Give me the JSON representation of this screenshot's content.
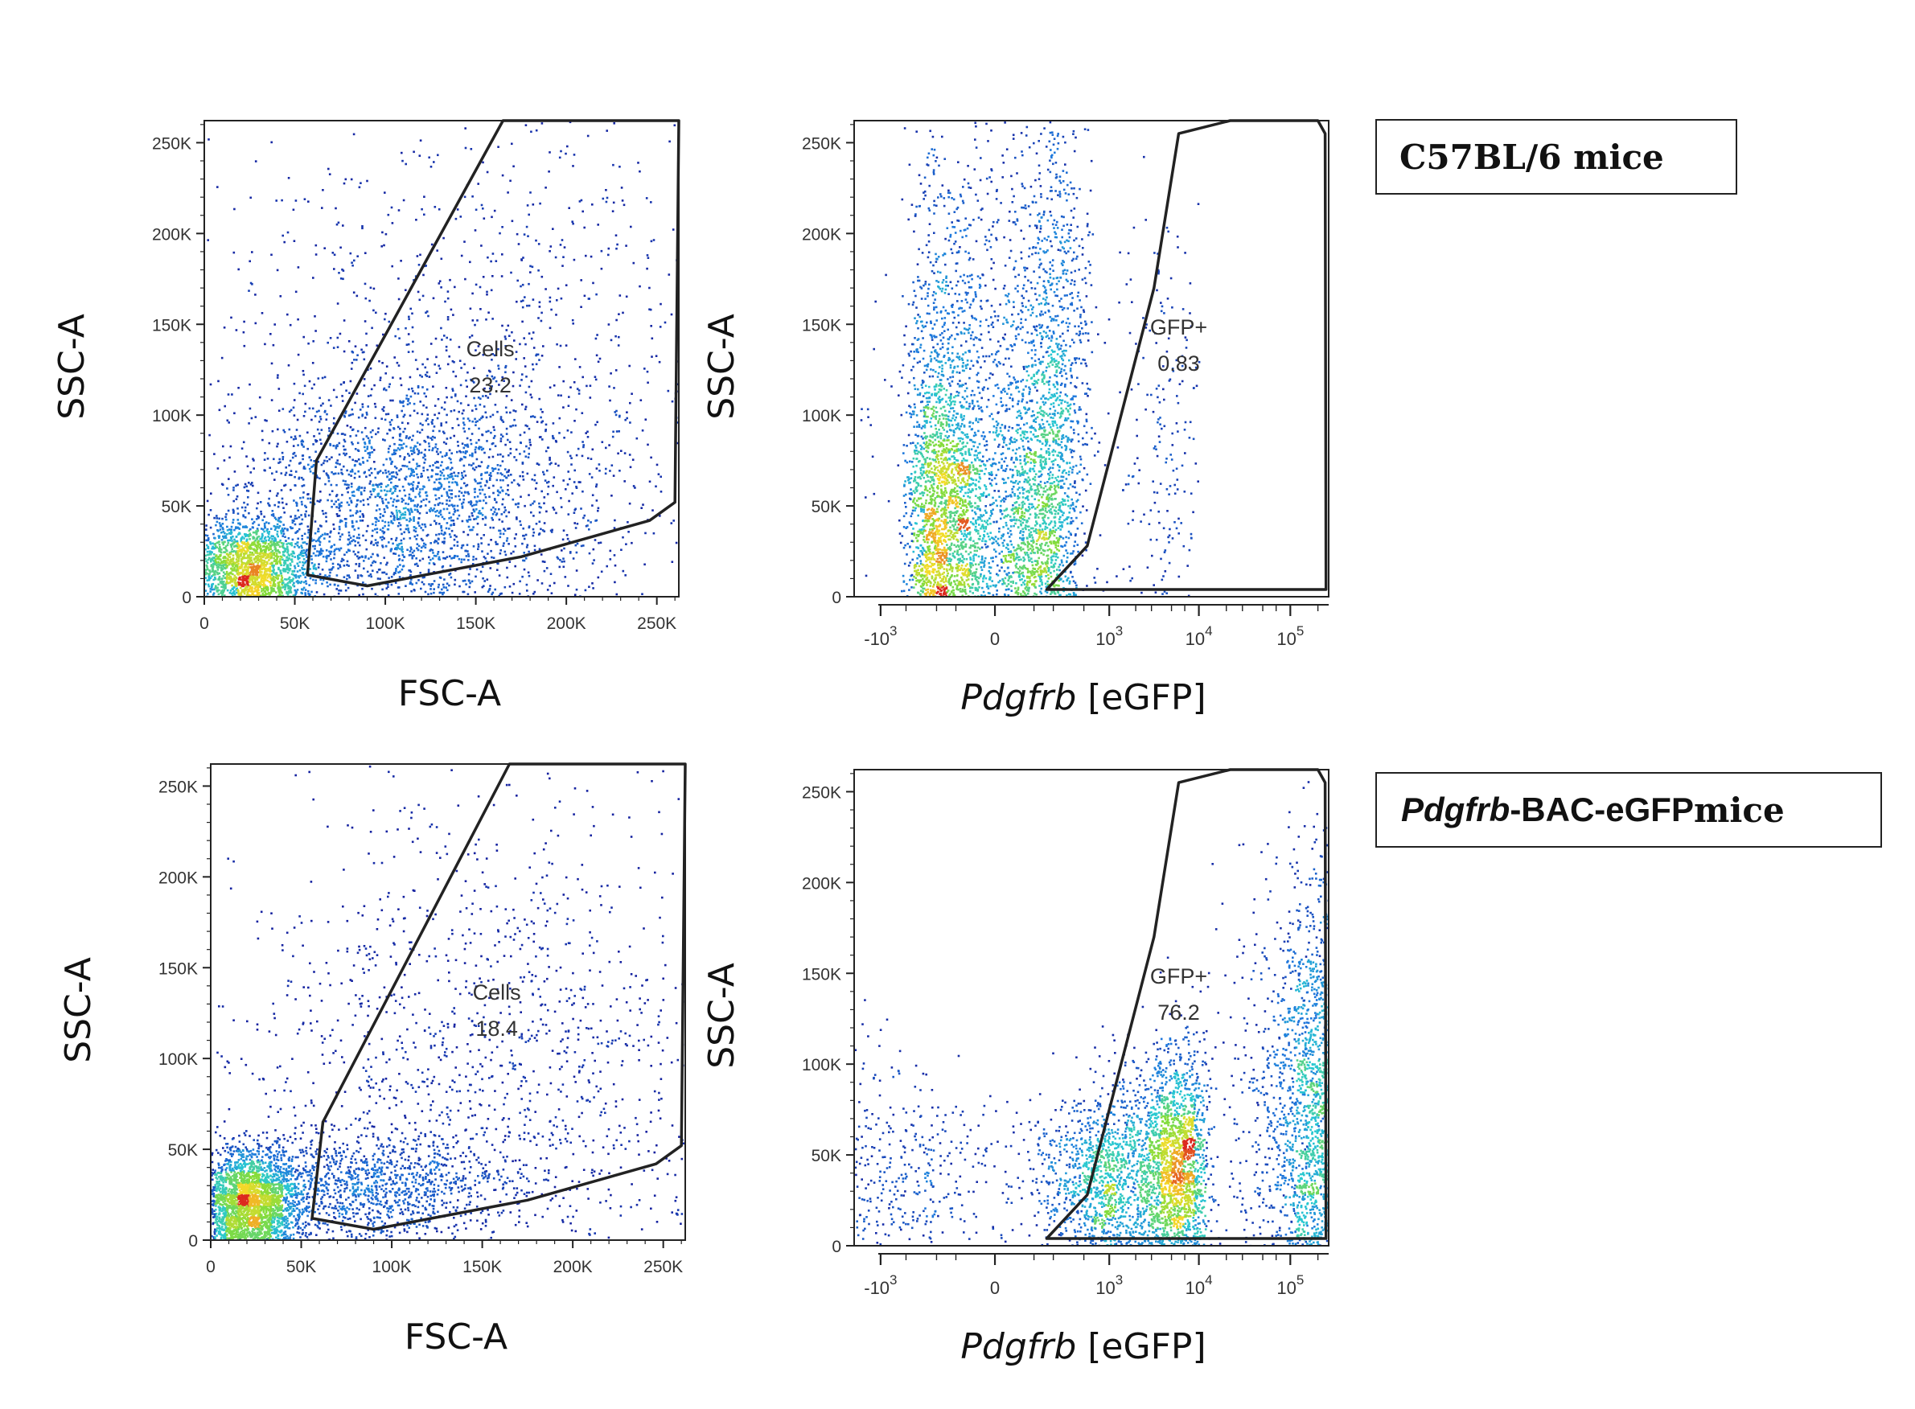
{
  "figure": {
    "panels_label_top": "C57BL/6 mice",
    "panels_label_bottom_italic": "Pdgfrb",
    "panels_label_bottom_sans": "-BAC-eGFP",
    "panels_label_bottom_serif": " mice"
  },
  "colors": {
    "density_low": "#1a1aa0",
    "density_mid": "#1fb6d8",
    "density_high": "#f2e22a",
    "density_peak": "#e0281b",
    "gate_line": "#222222",
    "axis": "#222222"
  },
  "chart_data": [
    {
      "id": "top-left",
      "type": "scatter",
      "xlabel": "FSC-A",
      "ylabel": "SSC-A",
      "xscale": "linear",
      "xlim": [
        0,
        262144
      ],
      "ylim": [
        0,
        262144
      ],
      "xticks": [
        0,
        50000,
        100000,
        150000,
        200000,
        250000
      ],
      "xtick_labels": [
        "0",
        "50K",
        "100K",
        "150K",
        "200K",
        "250K"
      ],
      "yticks": [
        0,
        50000,
        100000,
        150000,
        200000,
        250000
      ],
      "ytick_labels": [
        "0",
        "50K",
        "100K",
        "150K",
        "200K",
        "250K"
      ],
      "gate": {
        "name": "Cells",
        "value": "23.2",
        "label_pos": [
          158000,
          128000
        ],
        "polygon": [
          [
            165000,
            262144
          ],
          [
            62000,
            75000
          ],
          [
            57000,
            12000
          ],
          [
            90000,
            6000
          ],
          [
            175000,
            22000
          ],
          [
            246000,
            42000
          ],
          [
            260000,
            52000
          ],
          [
            262144,
            262144
          ]
        ]
      },
      "density": {
        "clusters": [
          {
            "center": [
              25000,
              18000
            ],
            "spread": [
              18000,
              13000
            ],
            "weight": 0.34
          },
          {
            "center": [
              115000,
              55000
            ],
            "spread": [
              48000,
              32000
            ],
            "weight": 0.4
          },
          {
            "center": [
              150000,
              130000
            ],
            "spread": [
              70000,
              70000
            ],
            "weight": 0.16
          },
          {
            "center": [
              130000,
              130000
            ],
            "spread": [
              140000,
              140000
            ],
            "weight": 0.1
          }
        ]
      }
    },
    {
      "id": "top-right",
      "type": "scatter",
      "xlabel_italic": "Pdgfrb",
      "xlabel_rest": " [eGFP]",
      "ylabel": "SSC-A",
      "xscale": "biexponential",
      "xlim": [
        -2000,
        262144
      ],
      "ylim": [
        0,
        262144
      ],
      "xtick_labels": [
        {
          "base": "-10",
          "exp": "3",
          "value": -1000
        },
        {
          "base": "0",
          "exp": "",
          "value": 0
        },
        {
          "base": "10",
          "exp": "3",
          "value": 1000
        },
        {
          "base": "10",
          "exp": "4",
          "value": 10000
        },
        {
          "base": "10",
          "exp": "5",
          "value": 100000
        }
      ],
      "yticks": [
        0,
        50000,
        100000,
        150000,
        200000,
        250000
      ],
      "ytick_labels": [
        "0",
        "50K",
        "100K",
        "150K",
        "200K",
        "250K"
      ],
      "gate": {
        "name": "GFP+",
        "value": "0.83",
        "label_pos": [
          6000,
          140000
        ],
        "polygon": [
          [
            160,
            4000
          ],
          [
            550,
            28000
          ],
          [
            3200,
            170000
          ],
          [
            6000,
            255000
          ],
          [
            22000,
            262144
          ],
          [
            200000,
            262144
          ],
          [
            240000,
            255000
          ],
          [
            245000,
            4000
          ]
        ]
      },
      "density": {
        "clusters": [
          {
            "center": [
              -60,
              45000
            ],
            "spread": [
              180,
              45000
            ],
            "weight": 0.55
          },
          {
            "center": [
              40,
              130000
            ],
            "spread": [
              220,
              80000
            ],
            "weight": 0.4
          },
          {
            "center": [
              3000,
              90000
            ],
            "spread": [
              3000,
              70000
            ],
            "weight": 0.05
          }
        ]
      }
    },
    {
      "id": "bottom-left",
      "type": "scatter",
      "xlabel": "FSC-A",
      "ylabel": "SSC-A",
      "xscale": "linear",
      "xlim": [
        0,
        262144
      ],
      "ylim": [
        0,
        262144
      ],
      "xticks": [
        0,
        50000,
        100000,
        150000,
        200000,
        250000
      ],
      "xtick_labels": [
        "0",
        "50K",
        "100K",
        "150K",
        "200K",
        "250K"
      ],
      "yticks": [
        0,
        50000,
        100000,
        150000,
        200000,
        250000
      ],
      "ytick_labels": [
        "0",
        "50K",
        "100K",
        "150K",
        "200K",
        "250K"
      ],
      "gate": {
        "name": "Cells",
        "value": "18.4",
        "label_pos": [
          158000,
          128000
        ],
        "polygon": [
          [
            165000,
            262144
          ],
          [
            62000,
            65000
          ],
          [
            56000,
            12000
          ],
          [
            90000,
            6000
          ],
          [
            175000,
            22000
          ],
          [
            246000,
            42000
          ],
          [
            260000,
            52000
          ],
          [
            262144,
            262144
          ]
        ]
      },
      "density": {
        "clusters": [
          {
            "center": [
              20000,
              22000
            ],
            "spread": [
              14000,
              15000
            ],
            "weight": 0.5
          },
          {
            "center": [
              90000,
              30000
            ],
            "spread": [
              35000,
              15000
            ],
            "weight": 0.2
          },
          {
            "center": [
              160000,
              90000
            ],
            "spread": [
              70000,
              60000
            ],
            "weight": 0.2
          },
          {
            "center": [
              130000,
              130000
            ],
            "spread": [
              140000,
              140000
            ],
            "weight": 0.1
          }
        ]
      }
    },
    {
      "id": "bottom-right",
      "type": "scatter",
      "xlabel_italic": "Pdgfrb",
      "xlabel_rest": " [eGFP]",
      "ylabel": "SSC-A",
      "xscale": "biexponential",
      "xlim": [
        -2000,
        262144
      ],
      "ylim": [
        0,
        262144
      ],
      "xtick_labels": [
        {
          "base": "-10",
          "exp": "3",
          "value": -1000
        },
        {
          "base": "0",
          "exp": "",
          "value": 0
        },
        {
          "base": "10",
          "exp": "3",
          "value": 1000
        },
        {
          "base": "10",
          "exp": "4",
          "value": 10000
        },
        {
          "base": "10",
          "exp": "5",
          "value": 100000
        }
      ],
      "yticks": [
        0,
        50000,
        100000,
        150000,
        200000,
        250000
      ],
      "ytick_labels": [
        "0",
        "50K",
        "100K",
        "150K",
        "200K",
        "250K"
      ],
      "gate": {
        "name": "GFP+",
        "value": "76.2",
        "label_pos": [
          6000,
          140000
        ],
        "polygon": [
          [
            160,
            4000
          ],
          [
            550,
            28000
          ],
          [
            3200,
            170000
          ],
          [
            6000,
            255000
          ],
          [
            22000,
            262144
          ],
          [
            200000,
            262144
          ],
          [
            240000,
            255000
          ],
          [
            245000,
            4000
          ]
        ]
      },
      "density": {
        "clusters": [
          {
            "center": [
              4000,
              45000
            ],
            "spread": [
              3500,
              30000
            ],
            "weight": 0.5
          },
          {
            "center": [
              150000,
              80000
            ],
            "spread": [
              90000,
              60000
            ],
            "weight": 0.35
          },
          {
            "center": [
              600,
              35000
            ],
            "spread": [
              500,
              20000
            ],
            "weight": 0.15
          }
        ]
      }
    }
  ]
}
